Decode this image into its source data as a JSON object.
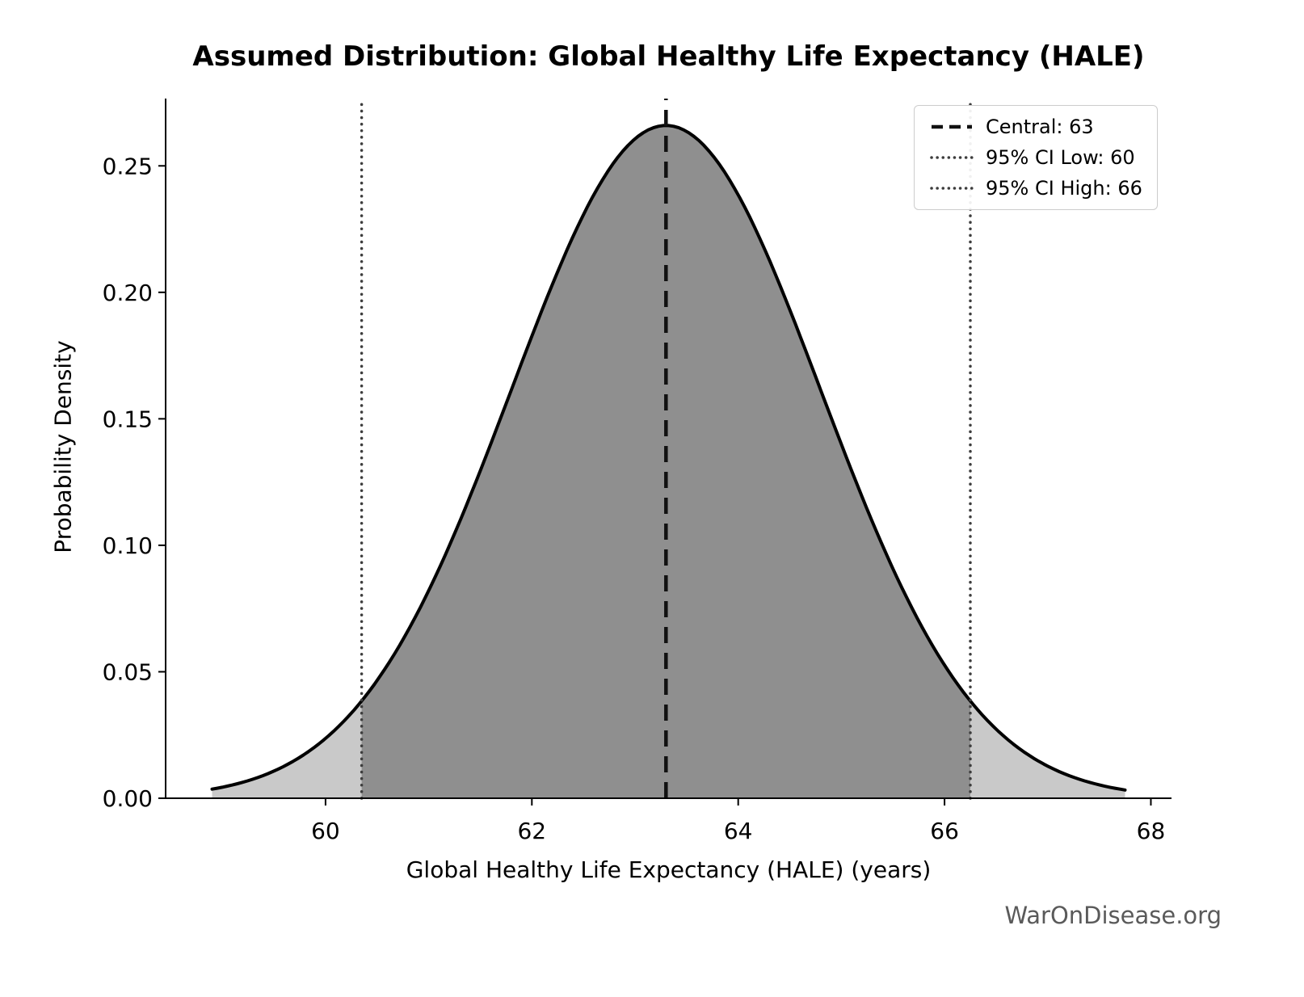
{
  "figure": {
    "title": "Assumed Distribution: Global Healthy Life Expectancy (HALE)",
    "xlabel": "Global Healthy Life Expectancy (HALE) (years)",
    "ylabel": "Probability Density",
    "watermark": "WarOnDisease.org"
  },
  "legend": {
    "position": "upper right",
    "entries": [
      {
        "label": "Central: 63",
        "style": "dashed",
        "color": "#111111"
      },
      {
        "label": "95% CI Low: 60",
        "style": "dotted",
        "color": "#3d3d3d"
      },
      {
        "label": "95% CI High: 66",
        "style": "dotted",
        "color": "#3d3d3d"
      }
    ]
  },
  "chart_data": {
    "type": "area",
    "distribution": "normal",
    "title": "Assumed Distribution: Global Healthy Life Expectancy (HALE)",
    "xlabel": "Global Healthy Life Expectancy (HALE) (years)",
    "ylabel": "Probability Density",
    "mean": 63.3,
    "sigma": 1.5,
    "peak_density": 0.266,
    "central_line": 63.3,
    "ci_low_line": 60.35,
    "ci_high_line": 66.25,
    "central_label_value": 63,
    "ci_low_label_value": 60,
    "ci_high_label_value": 66,
    "curve_x_min": 58.9,
    "curve_x_max": 67.75,
    "xlim": [
      58.45,
      68.2
    ],
    "ylim": [
      0,
      0.2766
    ],
    "x_ticks": [
      60,
      62,
      64,
      66,
      68
    ],
    "x_tick_labels": [
      "60",
      "62",
      "64",
      "66",
      "68"
    ],
    "y_ticks": [
      0,
      0.05,
      0.1,
      0.15,
      0.2,
      0.25
    ],
    "y_tick_labels": [
      "0.00",
      "0.05",
      "0.10",
      "0.15",
      "0.20",
      "0.25"
    ],
    "grid": false,
    "colors": {
      "curve": "#000000",
      "fill_tails": "#c9c9c9",
      "fill_central": "#8f8f8f",
      "central_line": "#111111",
      "ci_line": "#3d3d3d"
    }
  }
}
